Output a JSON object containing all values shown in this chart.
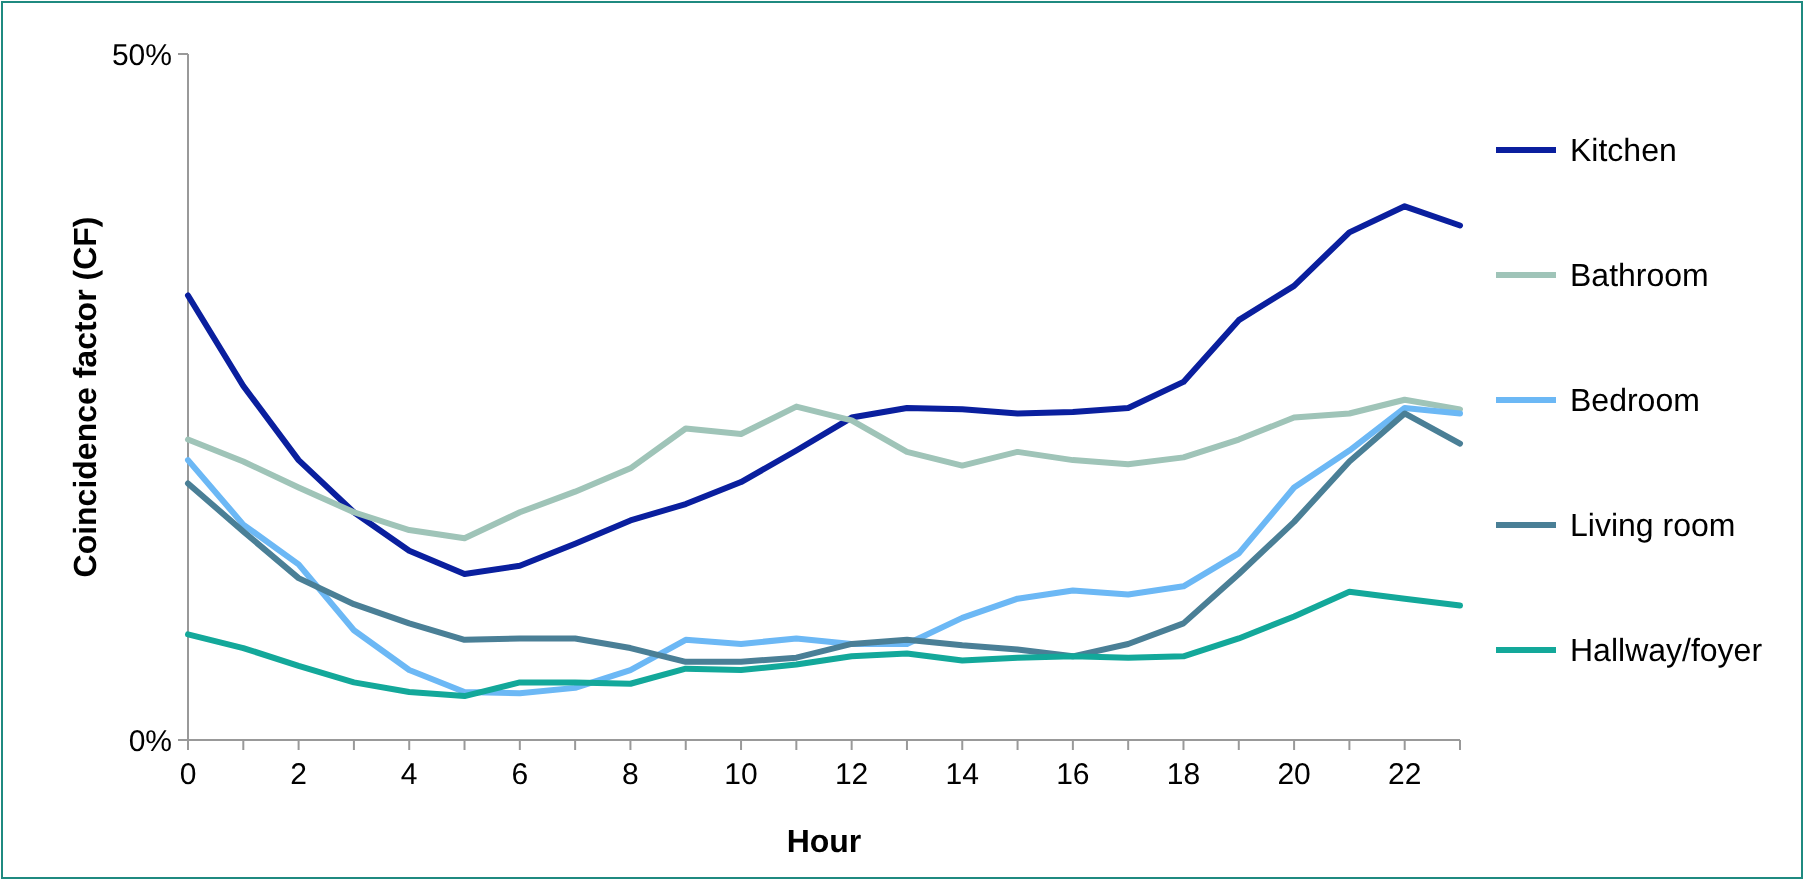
{
  "chart_data": {
    "type": "line",
    "xlabel": "Hour",
    "ylabel": "Coincidence factor (CF)",
    "x": [
      0,
      1,
      2,
      3,
      4,
      5,
      6,
      7,
      8,
      9,
      10,
      11,
      12,
      13,
      14,
      15,
      16,
      17,
      18,
      19,
      20,
      21,
      22,
      23
    ],
    "xlim": [
      0,
      23
    ],
    "xticks": [
      0,
      {
        "value": 1,
        "label": null
      },
      2,
      {
        "value": 3,
        "label": null
      },
      4,
      {
        "value": 5,
        "label": null
      },
      6,
      {
        "value": 7,
        "label": null
      },
      8,
      {
        "value": 9,
        "label": null
      },
      10,
      {
        "value": 11,
        "label": null
      },
      12,
      {
        "value": 13,
        "label": null
      },
      14,
      {
        "value": 15,
        "label": null
      },
      16,
      {
        "value": 17,
        "label": null
      },
      18,
      {
        "value": 19,
        "label": null
      },
      20,
      {
        "value": 21,
        "label": null
      },
      22,
      {
        "value": 23,
        "label": null
      }
    ],
    "ylim": [
      0,
      50
    ],
    "yticks": [
      {
        "value": 0,
        "label": "0%"
      },
      {
        "value": 50,
        "label": "50%"
      }
    ],
    "grid": false,
    "legend": "right",
    "marker": "none",
    "line_style": "solid",
    "series": [
      {
        "name": "Kitchen",
        "color": "#0a1f9e",
        "values": [
          32.4,
          25.8,
          20.4,
          16.6,
          13.8,
          12.1,
          12.7,
          14.3,
          16.0,
          17.2,
          18.8,
          21.1,
          23.5,
          24.2,
          24.1,
          23.8,
          23.9,
          24.2,
          26.1,
          30.6,
          33.1,
          37.0,
          38.9,
          37.5
        ]
      },
      {
        "name": "Bathroom",
        "color": "#9fc4b8",
        "values": [
          21.9,
          20.3,
          18.4,
          16.6,
          15.3,
          14.7,
          16.6,
          18.1,
          19.8,
          22.7,
          22.3,
          24.3,
          23.3,
          21.0,
          20.0,
          21.0,
          20.4,
          20.1,
          20.6,
          21.9,
          23.5,
          23.8,
          24.8,
          24.1
        ]
      },
      {
        "name": "Bedroom",
        "color": "#6cb8f5",
        "values": [
          20.4,
          15.7,
          12.8,
          8.0,
          5.1,
          3.5,
          3.4,
          3.8,
          5.1,
          7.3,
          7.0,
          7.4,
          7.0,
          7.0,
          8.9,
          10.3,
          10.9,
          10.6,
          11.2,
          13.6,
          18.4,
          21.1,
          24.2,
          23.8
        ]
      },
      {
        "name": "Living room",
        "color": "#4a7f96",
        "values": [
          18.7,
          15.2,
          11.8,
          9.9,
          8.5,
          7.3,
          7.4,
          7.4,
          6.7,
          5.7,
          5.7,
          6.0,
          7.0,
          7.3,
          6.9,
          6.6,
          6.1,
          7.0,
          8.5,
          12.1,
          15.9,
          20.3,
          23.8,
          21.6
        ]
      },
      {
        "name": "Hallway/foyer",
        "color": "#13a89a",
        "values": [
          7.7,
          6.7,
          5.4,
          4.2,
          3.5,
          3.2,
          4.2,
          4.2,
          4.1,
          5.2,
          5.1,
          5.5,
          6.1,
          6.3,
          5.8,
          6.0,
          6.1,
          6.0,
          6.1,
          7.4,
          9.0,
          10.8,
          10.3,
          9.8
        ]
      }
    ]
  }
}
